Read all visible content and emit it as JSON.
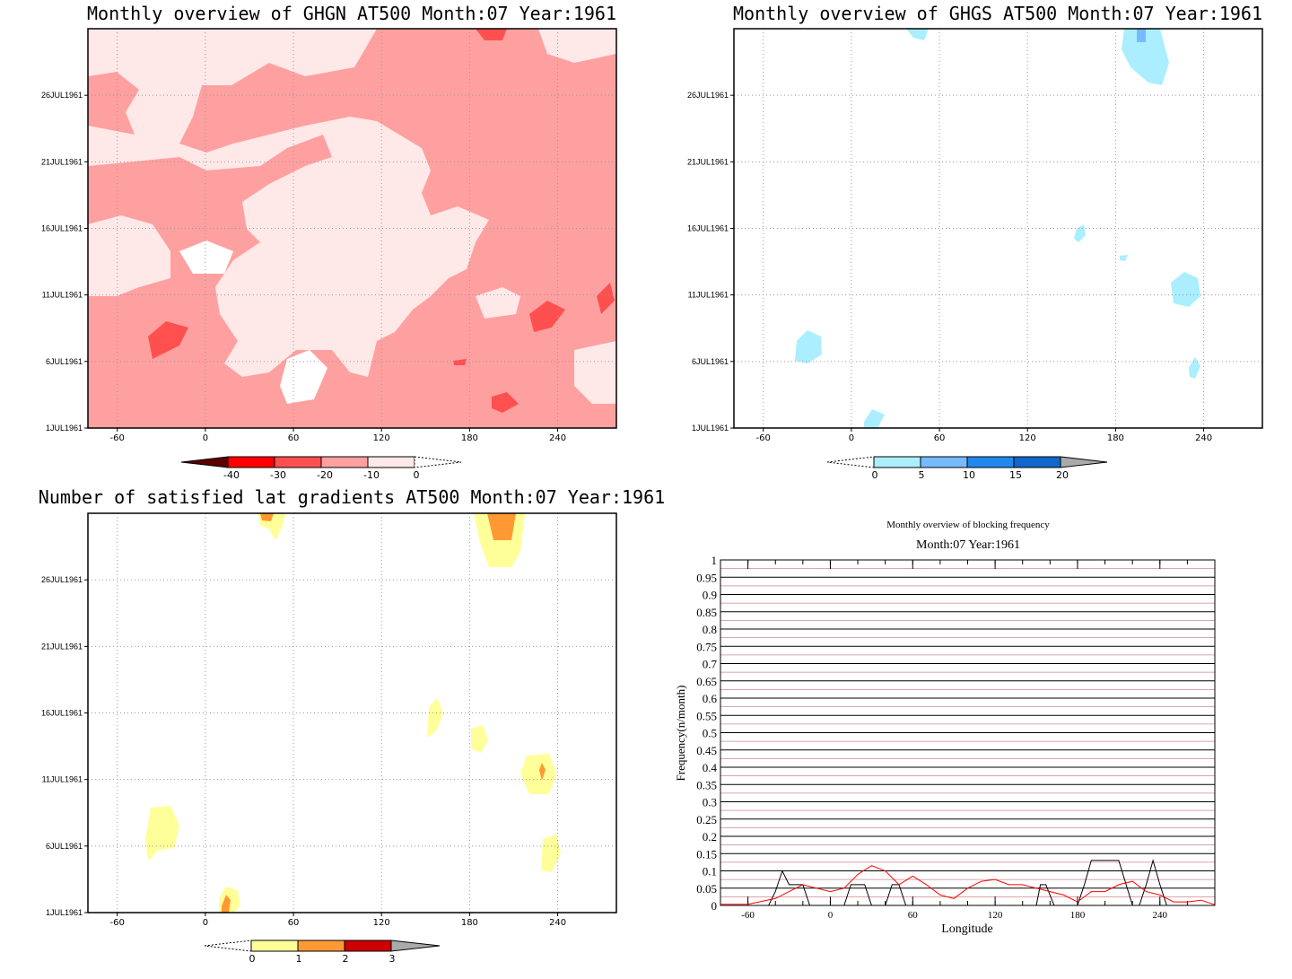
{
  "chart_data": [
    {
      "type": "heatmap",
      "title": "Monthly overview of GHGN AT500 Month:07 Year:1961",
      "xticks": [
        -60,
        0,
        60,
        120,
        180,
        240
      ],
      "xlim": [
        -80,
        280
      ],
      "yticks": [
        "26JUL1961",
        "21JUL1961",
        "16JUL1961",
        "11JUL1961",
        "6JUL1961",
        "1JUL1961"
      ],
      "ylim": [
        1,
        31
      ],
      "grid": true,
      "colorbar": {
        "labels": [
          "-40",
          "-30",
          "-20",
          "-10",
          "0"
        ],
        "colors": [
          "#5b0000",
          "#ff0000",
          "#ff5050",
          "#ffa0a0",
          "#ffe8e8"
        ]
      }
    },
    {
      "type": "heatmap",
      "title": "Monthly overview of GHGS AT500 Month:07 Year:1961",
      "xticks": [
        -60,
        0,
        60,
        120,
        180,
        240
      ],
      "xlim": [
        -80,
        280
      ],
      "yticks": [
        "26JUL1961",
        "21JUL1961",
        "16JUL1961",
        "11JUL1961",
        "6JUL1961",
        "1JUL1961"
      ],
      "ylim": [
        1,
        31
      ],
      "grid": true,
      "colorbar": {
        "labels": [
          "0",
          "5",
          "10",
          "15",
          "20"
        ],
        "colors": [
          "#aaeeff",
          "#77bbff",
          "#2288ee",
          "#1166cc",
          "#aaaaaa"
        ]
      }
    },
    {
      "type": "heatmap",
      "title": "Number of satisfied lat gradients AT500 Month:07 Year:1961",
      "xticks": [
        -60,
        0,
        60,
        120,
        180,
        240
      ],
      "xlim": [
        -80,
        280
      ],
      "yticks": [
        "26JUL1961",
        "21JUL1961",
        "16JUL1961",
        "11JUL1961",
        "6JUL1961",
        "1JUL1961"
      ],
      "ylim": [
        1,
        31
      ],
      "grid": true,
      "colorbar": {
        "labels": [
          "0",
          "1",
          "2",
          "3"
        ],
        "colors": [
          "#ffff99",
          "#ff9933",
          "#cc0000",
          "#aaaaaa"
        ]
      }
    },
    {
      "type": "line",
      "title": "Monthly overview of blocking frequency",
      "subtitle": "Month:07 Year:1961",
      "xlabel": "Longitude",
      "ylabel": "Frequency(n/month)",
      "xticks": [
        -60,
        0,
        60,
        120,
        180,
        240
      ],
      "xlim": [
        -80,
        280
      ],
      "ylim": [
        0,
        1
      ],
      "yticks": [
        "0",
        "0.05",
        "0.1",
        "0.15",
        "0.2",
        "0.25",
        "0.3",
        "0.35",
        "0.4",
        "0.45",
        "0.5",
        "0.55",
        "0.6",
        "0.65",
        "0.7",
        "0.75",
        "0.8",
        "0.85",
        "0.9",
        "0.95",
        "1"
      ],
      "series": [
        {
          "color": "#000000",
          "x": [
            -80,
            -45,
            -40,
            -35,
            -30,
            -20,
            -15,
            10,
            15,
            25,
            30,
            40,
            45,
            50,
            55,
            70,
            150,
            153,
            157,
            163,
            180,
            185,
            190,
            200,
            210,
            220,
            225,
            230,
            235,
            240,
            245,
            280
          ],
          "y": [
            0,
            0,
            0.04,
            0.1,
            0.06,
            0.06,
            0,
            0,
            0.06,
            0.06,
            0,
            0,
            0.06,
            0.06,
            0,
            0,
            0,
            0.06,
            0.06,
            0,
            0,
            0.06,
            0.13,
            0.13,
            0.13,
            0,
            0,
            0.06,
            0.13,
            0.06,
            0,
            0
          ]
        },
        {
          "color": "#ff0000",
          "x": [
            -80,
            -60,
            -40,
            -30,
            -20,
            -10,
            0,
            10,
            20,
            30,
            40,
            50,
            60,
            70,
            80,
            90,
            100,
            110,
            120,
            130,
            140,
            150,
            160,
            170,
            180,
            190,
            200,
            210,
            220,
            230,
            240,
            250,
            260,
            270,
            280
          ],
          "y": [
            0.003,
            0.003,
            0.02,
            0.04,
            0.06,
            0.05,
            0.04,
            0.05,
            0.09,
            0.115,
            0.1,
            0.06,
            0.085,
            0.06,
            0.03,
            0.02,
            0.05,
            0.07,
            0.075,
            0.06,
            0.06,
            0.05,
            0.04,
            0.03,
            0.01,
            0.04,
            0.04,
            0.06,
            0.07,
            0.04,
            0.03,
            0.01,
            0.01,
            0.015,
            0.002
          ]
        }
      ]
    }
  ]
}
